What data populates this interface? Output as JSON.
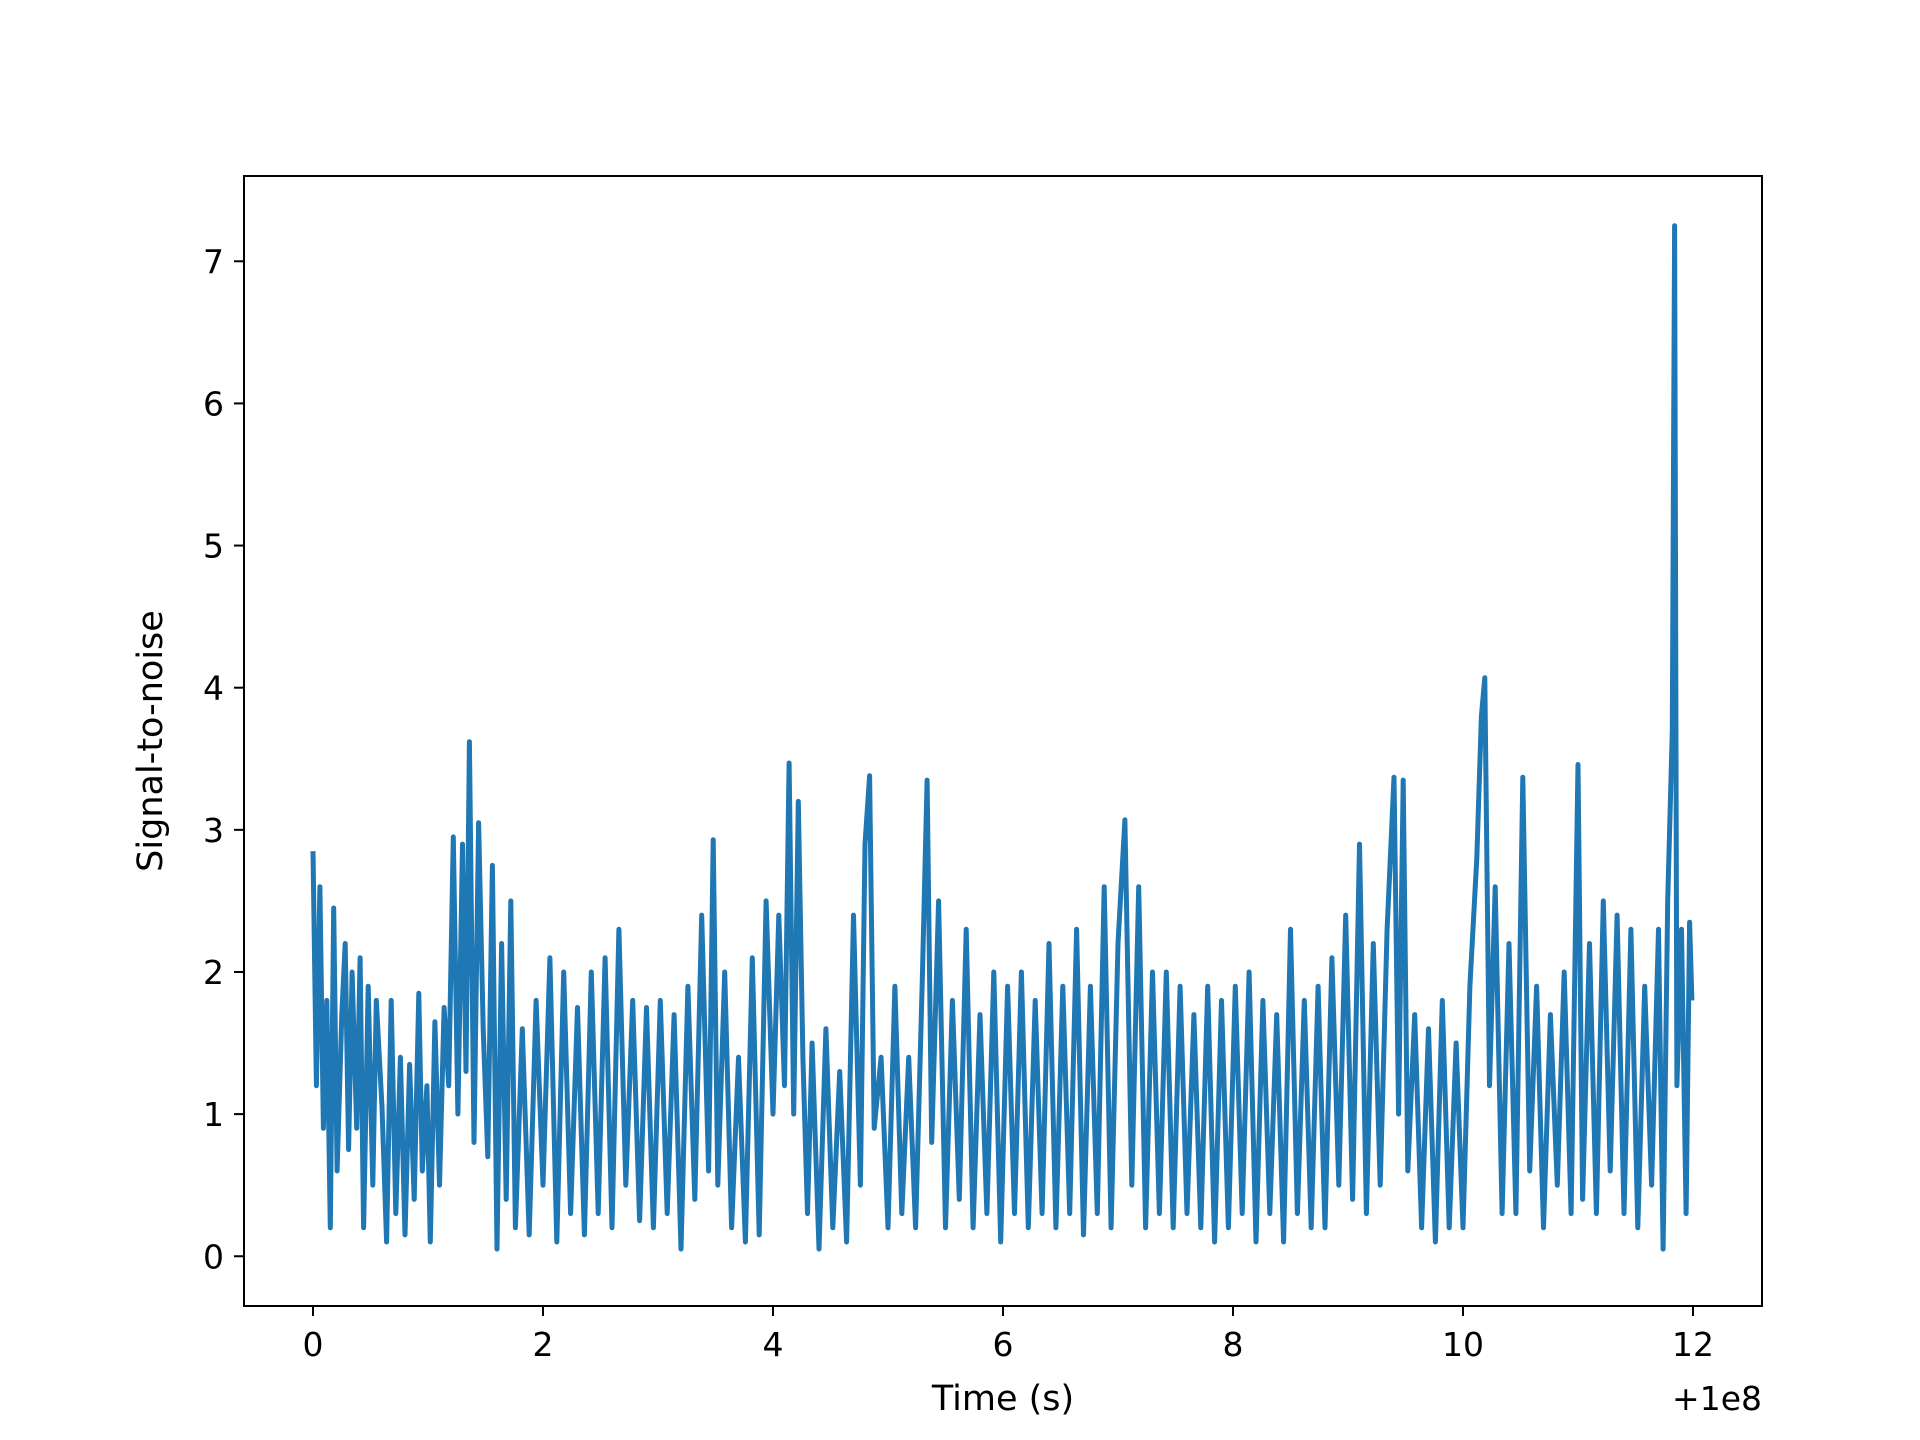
{
  "chart_data": {
    "type": "line",
    "title": "",
    "xlabel": "Time (s)",
    "ylabel": "Signal-to-noise",
    "x_offset_label": "+1e8",
    "xlim": [
      -0.6,
      12.6
    ],
    "ylim": [
      -0.35,
      7.6
    ],
    "x_ticks": [
      0,
      2,
      4,
      6,
      8,
      10,
      12
    ],
    "y_ticks": [
      0,
      1,
      2,
      3,
      4,
      5,
      6,
      7
    ],
    "grid": false,
    "legend": "none",
    "series_color": "#1f77b4",
    "series": [
      {
        "points": [
          [
            0.0,
            2.85
          ],
          [
            0.03,
            1.2
          ],
          [
            0.06,
            2.6
          ],
          [
            0.09,
            0.9
          ],
          [
            0.12,
            1.8
          ],
          [
            0.15,
            0.2
          ],
          [
            0.18,
            2.45
          ],
          [
            0.21,
            0.6
          ],
          [
            0.25,
            1.7
          ],
          [
            0.28,
            2.2
          ],
          [
            0.31,
            0.75
          ],
          [
            0.34,
            2.0
          ],
          [
            0.38,
            0.9
          ],
          [
            0.41,
            2.1
          ],
          [
            0.44,
            0.2
          ],
          [
            0.48,
            1.9
          ],
          [
            0.52,
            0.5
          ],
          [
            0.55,
            1.8
          ],
          [
            0.6,
            1.05
          ],
          [
            0.64,
            0.1
          ],
          [
            0.68,
            1.8
          ],
          [
            0.72,
            0.3
          ],
          [
            0.76,
            1.4
          ],
          [
            0.8,
            0.15
          ],
          [
            0.84,
            1.35
          ],
          [
            0.88,
            0.4
          ],
          [
            0.92,
            1.85
          ],
          [
            0.95,
            0.6
          ],
          [
            0.99,
            1.2
          ],
          [
            1.02,
            0.1
          ],
          [
            1.06,
            1.65
          ],
          [
            1.1,
            0.5
          ],
          [
            1.14,
            1.75
          ],
          [
            1.18,
            1.2
          ],
          [
            1.22,
            2.95
          ],
          [
            1.26,
            1.0
          ],
          [
            1.3,
            2.9
          ],
          [
            1.33,
            1.3
          ],
          [
            1.36,
            3.62
          ],
          [
            1.4,
            0.8
          ],
          [
            1.44,
            3.05
          ],
          [
            1.48,
            1.6
          ],
          [
            1.52,
            0.7
          ],
          [
            1.56,
            2.75
          ],
          [
            1.6,
            0.05
          ],
          [
            1.64,
            2.2
          ],
          [
            1.68,
            0.4
          ],
          [
            1.72,
            2.5
          ],
          [
            1.76,
            0.2
          ],
          [
            1.82,
            1.6
          ],
          [
            1.88,
            0.15
          ],
          [
            1.94,
            1.8
          ],
          [
            2.0,
            0.5
          ],
          [
            2.06,
            2.1
          ],
          [
            2.12,
            0.1
          ],
          [
            2.18,
            2.0
          ],
          [
            2.24,
            0.3
          ],
          [
            2.3,
            1.75
          ],
          [
            2.36,
            0.15
          ],
          [
            2.42,
            2.0
          ],
          [
            2.48,
            0.3
          ],
          [
            2.54,
            2.1
          ],
          [
            2.6,
            0.2
          ],
          [
            2.66,
            2.3
          ],
          [
            2.72,
            0.5
          ],
          [
            2.78,
            1.8
          ],
          [
            2.84,
            0.25
          ],
          [
            2.9,
            1.75
          ],
          [
            2.96,
            0.2
          ],
          [
            3.02,
            1.8
          ],
          [
            3.08,
            0.3
          ],
          [
            3.14,
            1.7
          ],
          [
            3.2,
            0.05
          ],
          [
            3.26,
            1.9
          ],
          [
            3.32,
            0.4
          ],
          [
            3.38,
            2.4
          ],
          [
            3.44,
            0.6
          ],
          [
            3.48,
            2.93
          ],
          [
            3.52,
            0.5
          ],
          [
            3.58,
            2.0
          ],
          [
            3.64,
            0.2
          ],
          [
            3.7,
            1.4
          ],
          [
            3.76,
            0.1
          ],
          [
            3.82,
            2.1
          ],
          [
            3.88,
            0.15
          ],
          [
            3.94,
            2.5
          ],
          [
            4.0,
            1.0
          ],
          [
            4.05,
            2.4
          ],
          [
            4.1,
            1.2
          ],
          [
            4.14,
            3.47
          ],
          [
            4.18,
            1.0
          ],
          [
            4.22,
            3.2
          ],
          [
            4.26,
            1.4
          ],
          [
            4.3,
            0.3
          ],
          [
            4.34,
            1.5
          ],
          [
            4.4,
            0.05
          ],
          [
            4.46,
            1.6
          ],
          [
            4.52,
            0.2
          ],
          [
            4.58,
            1.3
          ],
          [
            4.64,
            0.1
          ],
          [
            4.7,
            2.4
          ],
          [
            4.76,
            0.5
          ],
          [
            4.8,
            2.9
          ],
          [
            4.84,
            3.38
          ],
          [
            4.88,
            0.9
          ],
          [
            4.94,
            1.4
          ],
          [
            5.0,
            0.2
          ],
          [
            5.06,
            1.9
          ],
          [
            5.12,
            0.3
          ],
          [
            5.18,
            1.4
          ],
          [
            5.24,
            0.2
          ],
          [
            5.3,
            2.0
          ],
          [
            5.34,
            3.35
          ],
          [
            5.38,
            0.8
          ],
          [
            5.44,
            2.5
          ],
          [
            5.5,
            0.2
          ],
          [
            5.56,
            1.8
          ],
          [
            5.62,
            0.4
          ],
          [
            5.68,
            2.3
          ],
          [
            5.74,
            0.2
          ],
          [
            5.8,
            1.7
          ],
          [
            5.86,
            0.3
          ],
          [
            5.92,
            2.0
          ],
          [
            5.98,
            0.1
          ],
          [
            6.04,
            1.9
          ],
          [
            6.1,
            0.3
          ],
          [
            6.16,
            2.0
          ],
          [
            6.22,
            0.2
          ],
          [
            6.28,
            1.8
          ],
          [
            6.34,
            0.3
          ],
          [
            6.4,
            2.2
          ],
          [
            6.46,
            0.2
          ],
          [
            6.52,
            1.9
          ],
          [
            6.58,
            0.3
          ],
          [
            6.64,
            2.3
          ],
          [
            6.7,
            0.15
          ],
          [
            6.76,
            1.9
          ],
          [
            6.82,
            0.3
          ],
          [
            6.88,
            2.6
          ],
          [
            6.94,
            0.2
          ],
          [
            7.0,
            2.2
          ],
          [
            7.06,
            3.07
          ],
          [
            7.12,
            0.5
          ],
          [
            7.18,
            2.6
          ],
          [
            7.24,
            0.2
          ],
          [
            7.3,
            2.0
          ],
          [
            7.36,
            0.3
          ],
          [
            7.42,
            2.0
          ],
          [
            7.48,
            0.2
          ],
          [
            7.54,
            1.9
          ],
          [
            7.6,
            0.3
          ],
          [
            7.66,
            1.7
          ],
          [
            7.72,
            0.2
          ],
          [
            7.78,
            1.9
          ],
          [
            7.84,
            0.1
          ],
          [
            7.9,
            1.8
          ],
          [
            7.96,
            0.2
          ],
          [
            8.02,
            1.9
          ],
          [
            8.08,
            0.3
          ],
          [
            8.14,
            2.0
          ],
          [
            8.2,
            0.1
          ],
          [
            8.26,
            1.8
          ],
          [
            8.32,
            0.3
          ],
          [
            8.38,
            1.7
          ],
          [
            8.44,
            0.1
          ],
          [
            8.5,
            2.3
          ],
          [
            8.56,
            0.3
          ],
          [
            8.62,
            1.8
          ],
          [
            8.68,
            0.2
          ],
          [
            8.74,
            1.9
          ],
          [
            8.8,
            0.2
          ],
          [
            8.86,
            2.1
          ],
          [
            8.92,
            0.5
          ],
          [
            8.98,
            2.4
          ],
          [
            9.04,
            0.4
          ],
          [
            9.1,
            2.9
          ],
          [
            9.16,
            0.3
          ],
          [
            9.22,
            2.2
          ],
          [
            9.28,
            0.5
          ],
          [
            9.34,
            2.3
          ],
          [
            9.4,
            3.37
          ],
          [
            9.44,
            1.0
          ],
          [
            9.48,
            3.35
          ],
          [
            9.52,
            0.6
          ],
          [
            9.58,
            1.7
          ],
          [
            9.64,
            0.2
          ],
          [
            9.7,
            1.6
          ],
          [
            9.76,
            0.1
          ],
          [
            9.82,
            1.8
          ],
          [
            9.88,
            0.2
          ],
          [
            9.94,
            1.5
          ],
          [
            10.0,
            0.2
          ],
          [
            10.06,
            1.9
          ],
          [
            10.12,
            2.8
          ],
          [
            10.16,
            3.8
          ],
          [
            10.19,
            4.07
          ],
          [
            10.23,
            1.2
          ],
          [
            10.28,
            2.6
          ],
          [
            10.34,
            0.3
          ],
          [
            10.4,
            2.2
          ],
          [
            10.46,
            0.3
          ],
          [
            10.52,
            3.37
          ],
          [
            10.58,
            0.6
          ],
          [
            10.64,
            1.9
          ],
          [
            10.7,
            0.2
          ],
          [
            10.76,
            1.7
          ],
          [
            10.82,
            0.5
          ],
          [
            10.88,
            2.0
          ],
          [
            10.94,
            0.3
          ],
          [
            11.0,
            3.46
          ],
          [
            11.04,
            0.4
          ],
          [
            11.1,
            2.2
          ],
          [
            11.16,
            0.3
          ],
          [
            11.22,
            2.5
          ],
          [
            11.28,
            0.6
          ],
          [
            11.34,
            2.4
          ],
          [
            11.4,
            0.3
          ],
          [
            11.46,
            2.3
          ],
          [
            11.52,
            0.2
          ],
          [
            11.58,
            1.9
          ],
          [
            11.64,
            0.5
          ],
          [
            11.7,
            2.3
          ],
          [
            11.74,
            0.05
          ],
          [
            11.78,
            2.5
          ],
          [
            11.82,
            3.7
          ],
          [
            11.84,
            7.25
          ],
          [
            11.86,
            1.2
          ],
          [
            11.9,
            2.3
          ],
          [
            11.94,
            0.3
          ],
          [
            11.97,
            2.35
          ],
          [
            11.99,
            1.8
          ]
        ]
      }
    ]
  }
}
